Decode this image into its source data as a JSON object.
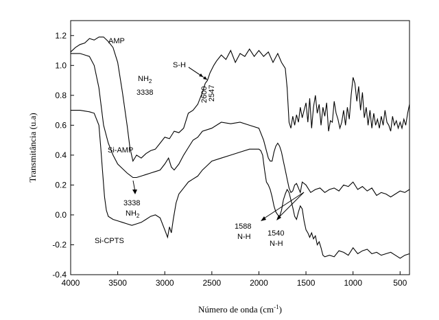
{
  "chart_data": {
    "type": "line",
    "title": "",
    "xlabel": "Número de onda",
    "xlabel_unit_base": "(cm",
    "xlabel_unit_exp": "-1",
    "xlabel_unit_close": ")",
    "ylabel": "Transmitância (u.a)",
    "xlim": [
      4000,
      400
    ],
    "ylim": [
      -0.4,
      1.3
    ],
    "x_reversed": true,
    "grid": false,
    "xticks": [
      4000,
      3500,
      3000,
      2500,
      2000,
      1500,
      1000,
      500
    ],
    "xtick_labels": [
      "4000",
      "3500",
      "3000",
      "2500",
      "2000",
      "1500",
      "1000",
      "500"
    ],
    "yticks": [
      -0.4,
      -0.2,
      0.0,
      0.2,
      0.4,
      0.6,
      0.8,
      1.0,
      1.2
    ],
    "ytick_labels": [
      "-0.4",
      "-0.2",
      "0.0",
      "0.2",
      "0.4",
      "0.6",
      "0.8",
      "1.0",
      "1.2"
    ],
    "series": [
      {
        "name": "AMP",
        "x": [
          4000,
          3950,
          3900,
          3850,
          3800,
          3750,
          3700,
          3650,
          3600,
          3550,
          3500,
          3450,
          3400,
          3370,
          3338,
          3300,
          3250,
          3200,
          3150,
          3100,
          3050,
          3000,
          2950,
          2900,
          2850,
          2800,
          2750,
          2700,
          2650,
          2600,
          2570,
          2547,
          2520,
          2480,
          2450,
          2400,
          2350,
          2300,
          2250,
          2200,
          2150,
          2100,
          2050,
          2000,
          1950,
          1900,
          1850,
          1800,
          1760,
          1720,
          1700,
          1680,
          1660,
          1640,
          1620,
          1600,
          1580,
          1560,
          1540,
          1520,
          1500,
          1480,
          1460,
          1440,
          1420,
          1400,
          1380,
          1360,
          1340,
          1320,
          1300,
          1280,
          1260,
          1240,
          1220,
          1200,
          1180,
          1160,
          1140,
          1120,
          1100,
          1080,
          1060,
          1040,
          1020,
          1000,
          980,
          960,
          940,
          920,
          900,
          880,
          860,
          840,
          820,
          800,
          780,
          760,
          740,
          720,
          700,
          680,
          660,
          640,
          620,
          600,
          580,
          560,
          540,
          520,
          500,
          480,
          460,
          440,
          420,
          400
        ],
        "y": [
          1.09,
          1.12,
          1.14,
          1.15,
          1.18,
          1.17,
          1.19,
          1.19,
          1.16,
          1.12,
          1.02,
          0.82,
          0.6,
          0.45,
          0.36,
          0.4,
          0.38,
          0.41,
          0.43,
          0.44,
          0.48,
          0.52,
          0.51,
          0.56,
          0.55,
          0.58,
          0.68,
          0.7,
          0.74,
          0.82,
          0.88,
          0.9,
          0.95,
          1.0,
          1.03,
          1.07,
          1.04,
          1.1,
          1.02,
          1.08,
          1.06,
          1.11,
          1.06,
          1.1,
          1.06,
          1.09,
          1.02,
          1.08,
          1.02,
          0.98,
          0.85,
          0.62,
          0.58,
          0.66,
          0.6,
          0.67,
          0.62,
          0.72,
          0.65,
          0.7,
          0.75,
          0.62,
          0.78,
          0.58,
          0.72,
          0.8,
          0.68,
          0.74,
          0.6,
          0.72,
          0.66,
          0.75,
          0.56,
          0.63,
          0.62,
          0.76,
          0.68,
          0.64,
          0.58,
          0.62,
          0.7,
          0.6,
          0.72,
          0.64,
          0.8,
          0.92,
          0.88,
          0.76,
          0.86,
          0.7,
          0.82,
          0.65,
          0.72,
          0.6,
          0.7,
          0.58,
          0.68,
          0.6,
          0.64,
          0.58,
          0.66,
          0.6,
          0.7,
          0.62,
          0.6,
          0.56,
          0.66,
          0.6,
          0.63,
          0.58,
          0.62,
          0.58,
          0.64,
          0.6,
          0.68,
          0.74
        ]
      },
      {
        "name": "Si-AMP",
        "x": [
          4000,
          3900,
          3800,
          3750,
          3700,
          3650,
          3600,
          3550,
          3500,
          3450,
          3400,
          3338,
          3300,
          3250,
          3200,
          3150,
          3100,
          3050,
          3000,
          2960,
          2930,
          2900,
          2850,
          2800,
          2750,
          2700,
          2650,
          2600,
          2500,
          2400,
          2300,
          2200,
          2100,
          2000,
          1950,
          1900,
          1880,
          1860,
          1840,
          1820,
          1800,
          1780,
          1760,
          1740,
          1720,
          1700,
          1680,
          1660,
          1640,
          1620,
          1600,
          1580,
          1560,
          1540,
          1500,
          1450,
          1400,
          1350,
          1300,
          1250,
          1200,
          1150,
          1100,
          1050,
          1000,
          950,
          900,
          850,
          800,
          750,
          700,
          650,
          600,
          550,
          500,
          450,
          400
        ],
        "y": [
          1.08,
          1.08,
          1.06,
          1.0,
          0.85,
          0.6,
          0.48,
          0.4,
          0.34,
          0.31,
          0.28,
          0.25,
          0.25,
          0.26,
          0.27,
          0.28,
          0.29,
          0.3,
          0.34,
          0.38,
          0.32,
          0.3,
          0.34,
          0.4,
          0.45,
          0.5,
          0.52,
          0.56,
          0.58,
          0.62,
          0.61,
          0.62,
          0.6,
          0.58,
          0.5,
          0.38,
          0.36,
          0.36,
          0.42,
          0.46,
          0.48,
          0.46,
          0.42,
          0.36,
          0.3,
          0.24,
          0.18,
          0.15,
          0.16,
          0.2,
          0.21,
          0.18,
          0.15,
          0.22,
          0.2,
          0.15,
          0.17,
          0.18,
          0.15,
          0.17,
          0.18,
          0.16,
          0.2,
          0.19,
          0.22,
          0.17,
          0.19,
          0.16,
          0.18,
          0.13,
          0.15,
          0.14,
          0.12,
          0.14,
          0.16,
          0.15,
          0.17
        ]
      },
      {
        "name": "Si-CPTS",
        "x": [
          4000,
          3900,
          3800,
          3750,
          3700,
          3680,
          3660,
          3640,
          3620,
          3600,
          3550,
          3500,
          3450,
          3400,
          3350,
          3300,
          3250,
          3200,
          3150,
          3100,
          3050,
          3000,
          2970,
          2950,
          2930,
          2910,
          2880,
          2850,
          2800,
          2750,
          2700,
          2650,
          2600,
          2550,
          2500,
          2400,
          2300,
          2200,
          2100,
          2000,
          1980,
          1960,
          1940,
          1920,
          1900,
          1880,
          1860,
          1840,
          1820,
          1800,
          1780,
          1760,
          1740,
          1720,
          1700,
          1680,
          1660,
          1640,
          1620,
          1600,
          1580,
          1560,
          1540,
          1520,
          1500,
          1480,
          1460,
          1440,
          1420,
          1400,
          1380,
          1360,
          1340,
          1320,
          1300,
          1250,
          1200,
          1150,
          1100,
          1050,
          1000,
          950,
          900,
          850,
          800,
          750,
          700,
          650,
          600,
          550,
          500,
          450,
          400
        ],
        "y": [
          0.7,
          0.7,
          0.69,
          0.68,
          0.6,
          0.45,
          0.28,
          0.12,
          0.03,
          -0.01,
          -0.03,
          -0.04,
          -0.05,
          -0.06,
          -0.07,
          -0.06,
          -0.05,
          -0.03,
          -0.01,
          0.0,
          -0.02,
          -0.1,
          -0.15,
          -0.08,
          -0.12,
          -0.03,
          0.08,
          0.14,
          0.18,
          0.22,
          0.24,
          0.26,
          0.3,
          0.33,
          0.36,
          0.38,
          0.4,
          0.42,
          0.44,
          0.44,
          0.43,
          0.4,
          0.3,
          0.22,
          0.2,
          0.17,
          0.12,
          0.06,
          0.02,
          0.0,
          -0.01,
          0.03,
          0.1,
          0.14,
          0.17,
          0.15,
          0.1,
          0.05,
          -0.01,
          -0.03,
          0.02,
          0.06,
          0.04,
          -0.04,
          -0.1,
          -0.12,
          -0.15,
          -0.12,
          -0.16,
          -0.14,
          -0.2,
          -0.18,
          -0.22,
          -0.27,
          -0.28,
          -0.27,
          -0.28,
          -0.24,
          -0.25,
          -0.27,
          -0.22,
          -0.26,
          -0.24,
          -0.23,
          -0.26,
          -0.25,
          -0.27,
          -0.26,
          -0.25,
          -0.27,
          -0.29,
          -0.27,
          -0.26
        ]
      }
    ],
    "annotations": {
      "nh2_top": "NH",
      "nh2_top_sub": "2",
      "wn_3338_top": "3338",
      "sh": "S-H",
      "wn_2600": "2600",
      "wn_2547": "2547",
      "wn_3338_bottom": "3338",
      "nh2_bottom": "NH",
      "nh2_bottom_sub": "2",
      "wn_1588": "1588",
      "nh_1588": "N-H",
      "wn_1540": "1540",
      "nh_1540": "N-H"
    }
  }
}
